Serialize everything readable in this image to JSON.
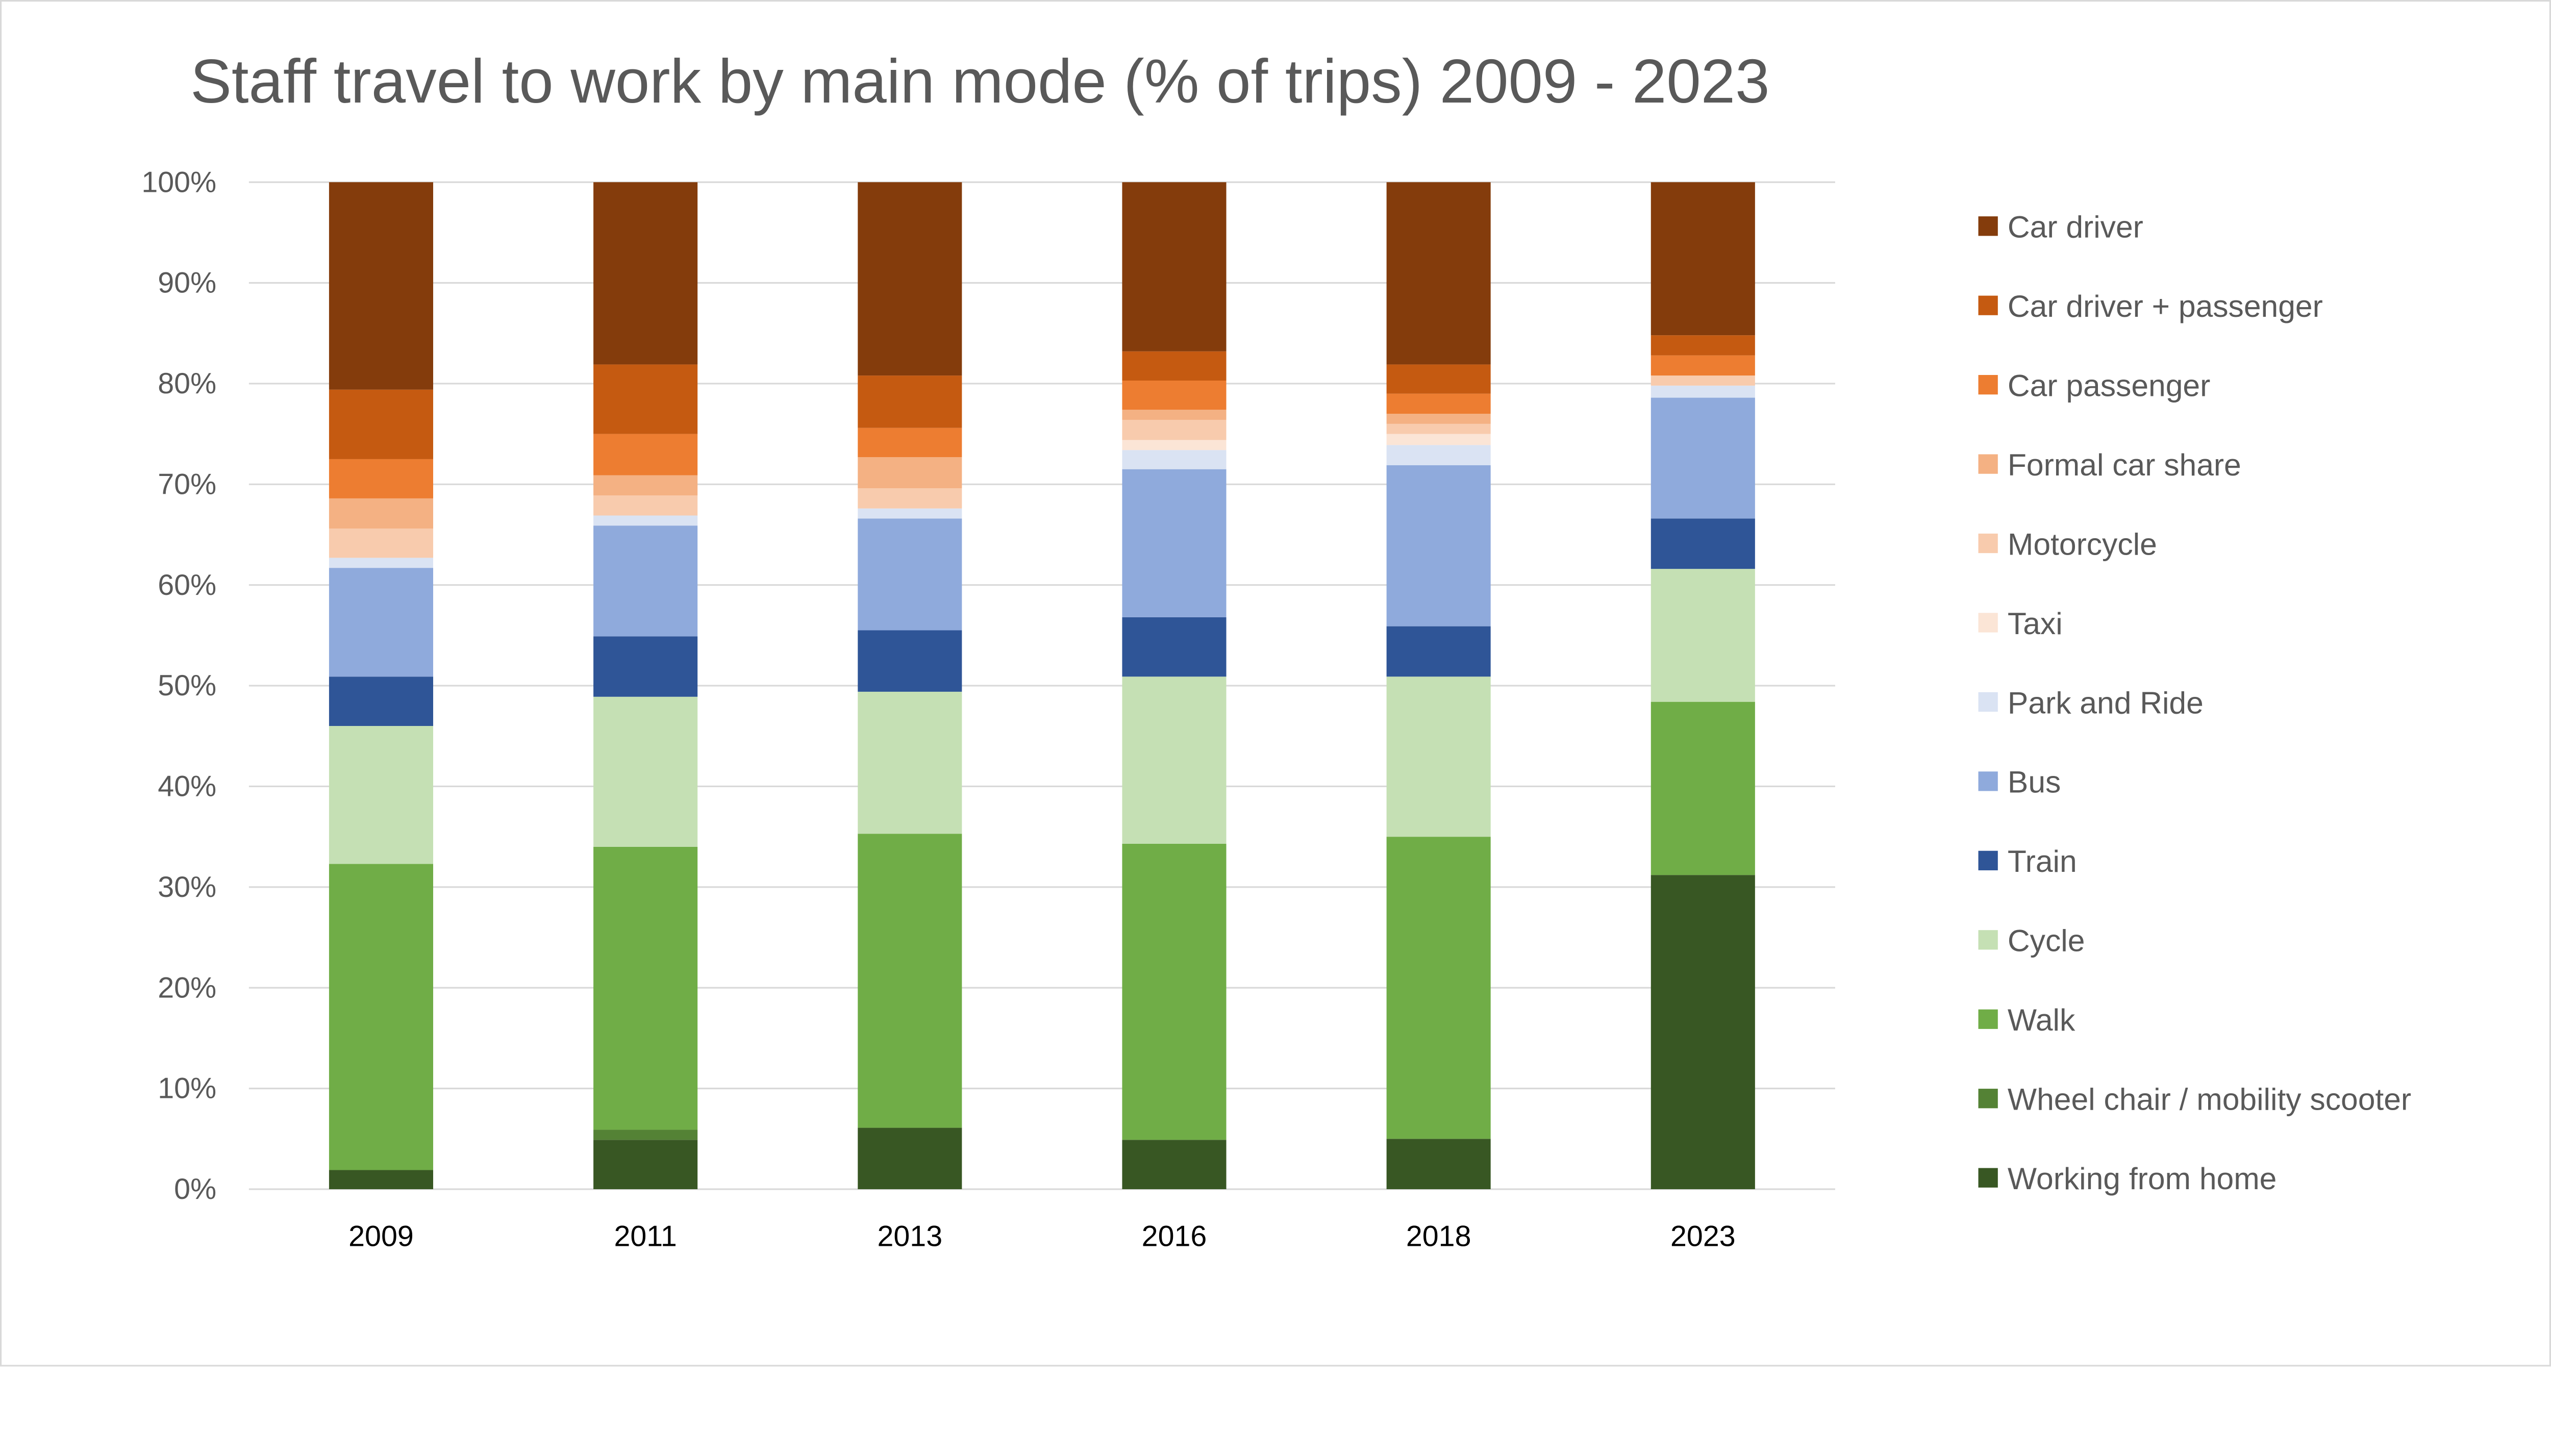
{
  "chart_data": {
    "type": "bar",
    "stacked": true,
    "percent_stacked": true,
    "title": "Staff travel to work by main mode (% of trips) 2009 - 2023",
    "xlabel": "",
    "ylabel": "",
    "ylim": [
      0,
      100
    ],
    "y_ticks": [
      "0%",
      "10%",
      "20%",
      "30%",
      "40%",
      "50%",
      "60%",
      "70%",
      "80%",
      "90%",
      "100%"
    ],
    "grid": true,
    "legend_position": "right",
    "categories": [
      "2009",
      "2011",
      "2013",
      "2016",
      "2018",
      "2023"
    ],
    "series": [
      {
        "name": "Working from home",
        "color": "#385723",
        "values": [
          1.9,
          4.9,
          6.1,
          4.9,
          5.0,
          31.2
        ]
      },
      {
        "name": "Wheel chair / mobility scooter",
        "color": "#548235",
        "values": [
          0,
          1.0,
          0,
          0,
          0,
          0
        ]
      },
      {
        "name": "Walk",
        "color": "#70AD47",
        "values": [
          30.4,
          28.1,
          29.2,
          29.4,
          30.0,
          17.2
        ]
      },
      {
        "name": "Cycle",
        "color": "#C5E0B4",
        "values": [
          13.7,
          14.9,
          14.1,
          16.6,
          15.9,
          13.2
        ]
      },
      {
        "name": "Train",
        "color": "#2F5597",
        "values": [
          4.9,
          6.0,
          6.1,
          5.9,
          5.0,
          5.0
        ]
      },
      {
        "name": "Bus",
        "color": "#8FAADC",
        "values": [
          10.8,
          11.0,
          11.1,
          14.7,
          16.0,
          12.0
        ]
      },
      {
        "name": "Park and Ride",
        "color": "#DAE3F3",
        "values": [
          1.0,
          1.0,
          1.0,
          1.9,
          2.0,
          1.2
        ]
      },
      {
        "name": "Taxi",
        "color": "#FBE5D6",
        "values": [
          0,
          0,
          0,
          1.0,
          1.1,
          0
        ]
      },
      {
        "name": "Motorcycle",
        "color": "#F8CBAD",
        "values": [
          2.9,
          2.0,
          2.0,
          2.0,
          1.0,
          1.0
        ]
      },
      {
        "name": "Formal car share",
        "color": "#F4B183",
        "values": [
          3.0,
          2.0,
          3.1,
          1.0,
          1.0,
          0
        ]
      },
      {
        "name": "Car passenger",
        "color": "#ED7D31",
        "values": [
          3.9,
          4.1,
          2.9,
          2.9,
          2.0,
          2.0
        ]
      },
      {
        "name": "Car driver + passenger",
        "color": "#C55A11",
        "values": [
          6.9,
          6.9,
          5.2,
          2.9,
          2.9,
          2.0
        ]
      },
      {
        "name": "Car driver",
        "color": "#843C0C",
        "values": [
          20.6,
          18.1,
          19.2,
          16.8,
          18.1,
          15.2
        ]
      }
    ]
  }
}
